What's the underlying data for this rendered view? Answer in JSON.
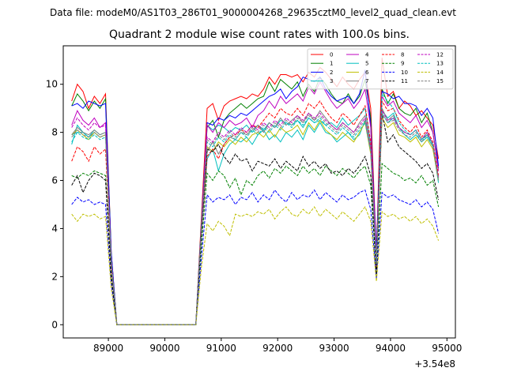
{
  "figure": {
    "suptitle": "Data file: modeM0/AS1T03_286T01_9000004268_29635cztM0_level2_quad_clean.evt"
  },
  "chart_data": {
    "type": "line",
    "title": "Quadrant 2 module wise count rates with 100.0s bins.",
    "xlabel": "",
    "ylabel": "",
    "x_offset_label": "+3.54e8",
    "x_offset": 354000000,
    "xlim": [
      88200,
      95150
    ],
    "ylim": [
      -0.55,
      11.6
    ],
    "x_ticks": [
      89000,
      90000,
      91000,
      92000,
      93000,
      94000,
      95000
    ],
    "x_tick_labels": [
      "89000",
      "90000",
      "91000",
      "92000",
      "93000",
      "94000",
      "95000"
    ],
    "y_ticks": [
      0,
      2,
      4,
      6,
      8,
      10
    ],
    "y_tick_labels": [
      "0",
      "2",
      "4",
      "6",
      "8",
      "10"
    ],
    "grid": false,
    "legend_placement": "top-right",
    "legend_columns": 4,
    "x": [
      88350,
      88450,
      88550,
      88650,
      88750,
      88850,
      88950,
      89050,
      89150,
      89250,
      89350,
      89450,
      89550,
      89650,
      89750,
      89850,
      89950,
      90050,
      90150,
      90250,
      90350,
      90450,
      90550,
      90650,
      90750,
      90850,
      90950,
      91050,
      91150,
      91250,
      91350,
      91450,
      91550,
      91650,
      91750,
      91850,
      91950,
      92050,
      92150,
      92250,
      92350,
      92450,
      92550,
      92650,
      92750,
      92850,
      92950,
      93050,
      93150,
      93250,
      93350,
      93450,
      93550,
      93650,
      93750,
      93850,
      93950,
      94050,
      94150,
      94250,
      94350,
      94450,
      94550,
      94650,
      94750,
      94850
    ],
    "series": [
      {
        "name": "0",
        "color": "#ff0000",
        "dash": "solid",
        "values": [
          9.3,
          10.0,
          9.7,
          9.0,
          9.5,
          9.2,
          9.6,
          3.0,
          0.0,
          0.0,
          0.0,
          0.0,
          0.0,
          0.0,
          0.0,
          0.0,
          0.0,
          0.0,
          0.0,
          0.0,
          0.0,
          0.0,
          0.0,
          4.5,
          9.0,
          9.2,
          8.5,
          9.1,
          9.3,
          9.4,
          9.5,
          9.4,
          9.6,
          9.5,
          9.8,
          10.3,
          10.0,
          10.4,
          10.4,
          10.3,
          10.4,
          10.1,
          10.5,
          10.3,
          10.7,
          10.5,
          10.2,
          9.9,
          10.3,
          10.0,
          9.8,
          10.2,
          10.5,
          9.0,
          3.0,
          11.1,
          9.5,
          9.7,
          9.0,
          9.3,
          9.1,
          8.7,
          8.9,
          8.6,
          8.3,
          6.9
        ]
      },
      {
        "name": "1",
        "color": "#008000",
        "dash": "solid",
        "values": [
          9.1,
          9.6,
          9.3,
          8.9,
          9.3,
          9.0,
          9.4,
          3.0,
          0.0,
          0.0,
          0.0,
          0.0,
          0.0,
          0.0,
          0.0,
          0.0,
          0.0,
          0.0,
          0.0,
          0.0,
          0.0,
          0.0,
          0.0,
          4.3,
          8.2,
          8.5,
          7.8,
          8.5,
          8.8,
          9.0,
          9.2,
          9.0,
          9.2,
          9.4,
          9.5,
          10.1,
          9.7,
          10.2,
          10.0,
          9.8,
          10.1,
          9.5,
          10.0,
          9.7,
          10.3,
          10.0,
          9.6,
          9.3,
          9.2,
          9.6,
          9.2,
          9.5,
          10.2,
          8.6,
          2.8,
          9.8,
          9.2,
          9.6,
          9.0,
          8.8,
          8.7,
          9.0,
          8.4,
          8.8,
          8.0,
          6.5
        ]
      },
      {
        "name": "2",
        "color": "#0000ff",
        "dash": "solid",
        "values": [
          9.1,
          9.2,
          9.0,
          9.3,
          9.2,
          9.1,
          9.2,
          3.0,
          0.0,
          0.0,
          0.0,
          0.0,
          0.0,
          0.0,
          0.0,
          0.0,
          0.0,
          0.0,
          0.0,
          0.0,
          0.0,
          0.0,
          0.0,
          4.2,
          8.4,
          8.3,
          8.6,
          8.5,
          8.7,
          8.6,
          8.8,
          8.7,
          8.9,
          9.1,
          9.3,
          9.5,
          9.6,
          9.8,
          9.4,
          9.7,
          9.9,
          10.3,
          10.2,
          10.1,
          10.3,
          9.8,
          9.5,
          9.3,
          9.4,
          9.5,
          9.2,
          9.6,
          10.6,
          8.3,
          3.0,
          9.7,
          9.6,
          9.4,
          9.5,
          9.2,
          9.2,
          9.1,
          8.7,
          9.0,
          8.6,
          6.6
        ]
      },
      {
        "name": "3",
        "color": "#00bfbf",
        "dash": "solid",
        "values": [
          7.9,
          8.0,
          8.0,
          7.8,
          8.1,
          7.9,
          8.0,
          2.6,
          0.0,
          0.0,
          0.0,
          0.0,
          0.0,
          0.0,
          0.0,
          0.0,
          0.0,
          0.0,
          0.0,
          0.0,
          0.0,
          0.0,
          0.0,
          4.0,
          8.3,
          8.1,
          8.3,
          8.2,
          8.0,
          8.2,
          8.1,
          8.3,
          8.0,
          8.3,
          8.1,
          8.4,
          8.2,
          8.5,
          8.4,
          8.3,
          8.5,
          8.2,
          8.6,
          8.4,
          8.5,
          8.3,
          8.4,
          8.2,
          8.6,
          8.3,
          8.5,
          8.7,
          9.0,
          7.5,
          2.6,
          8.8,
          8.4,
          8.6,
          8.2,
          8.0,
          7.9,
          8.1,
          7.7,
          7.9,
          7.5,
          6.0
        ]
      },
      {
        "name": "4",
        "color": "#bf00bf",
        "dash": "solid",
        "values": [
          8.3,
          8.9,
          8.5,
          8.3,
          8.6,
          8.2,
          8.4,
          2.7,
          0.0,
          0.0,
          0.0,
          0.0,
          0.0,
          0.0,
          0.0,
          0.0,
          0.0,
          0.0,
          0.0,
          0.0,
          0.0,
          0.0,
          0.0,
          4.1,
          8.3,
          8.0,
          8.4,
          8.2,
          8.5,
          8.3,
          8.4,
          8.6,
          8.2,
          8.7,
          8.9,
          9.3,
          9.0,
          9.5,
          9.2,
          9.4,
          9.6,
          9.3,
          9.9,
          9.6,
          10.1,
          9.7,
          9.3,
          9.0,
          9.2,
          9.4,
          9.0,
          9.3,
          9.8,
          8.2,
          2.7,
          9.5,
          9.1,
          9.3,
          8.8,
          8.6,
          8.4,
          8.7,
          8.2,
          8.5,
          8.0,
          6.4
        ]
      },
      {
        "name": "5",
        "color": "#00bfbf",
        "dash": "solid",
        "values": [
          7.5,
          8.3,
          8.0,
          7.8,
          8.0,
          7.8,
          7.9,
          2.6,
          0.0,
          0.0,
          0.0,
          0.0,
          0.0,
          0.0,
          0.0,
          0.0,
          0.0,
          0.0,
          0.0,
          0.0,
          0.0,
          0.0,
          0.0,
          3.9,
          6.9,
          7.3,
          6.4,
          7.1,
          7.5,
          7.7,
          7.6,
          7.8,
          7.5,
          7.9,
          8.1,
          7.7,
          7.9,
          7.6,
          8.0,
          7.8,
          8.1,
          7.7,
          8.3,
          8.0,
          8.4,
          8.0,
          7.9,
          7.6,
          7.8,
          8.0,
          7.7,
          7.9,
          8.5,
          7.2,
          2.5,
          8.9,
          8.6,
          8.8,
          8.2,
          7.9,
          7.7,
          7.9,
          7.6,
          7.8,
          7.4,
          5.9
        ]
      },
      {
        "name": "6",
        "color": "#bfbf00",
        "dash": "solid",
        "values": [
          7.9,
          8.1,
          7.9,
          7.7,
          8.0,
          7.8,
          7.9,
          2.6,
          0.0,
          0.0,
          0.0,
          0.0,
          0.0,
          0.0,
          0.0,
          0.0,
          0.0,
          0.0,
          0.0,
          0.0,
          0.0,
          0.0,
          0.0,
          4.0,
          7.4,
          7.2,
          7.6,
          7.4,
          7.7,
          7.5,
          7.8,
          7.6,
          7.9,
          8.0,
          7.8,
          8.1,
          7.8,
          8.2,
          8.0,
          8.1,
          8.3,
          7.9,
          8.4,
          8.1,
          8.5,
          8.1,
          7.9,
          7.7,
          8.0,
          7.8,
          7.6,
          8.0,
          8.4,
          7.1,
          2.5,
          8.6,
          8.2,
          8.4,
          7.9,
          7.8,
          7.6,
          7.8,
          7.4,
          7.7,
          7.3,
          6.0
        ]
      },
      {
        "name": "7",
        "color": "#808080",
        "dash": "solid",
        "values": [
          7.9,
          8.2,
          8.0,
          7.9,
          8.1,
          7.9,
          8.0,
          2.6,
          0.0,
          0.0,
          0.0,
          0.0,
          0.0,
          0.0,
          0.0,
          0.0,
          0.0,
          0.0,
          0.0,
          0.0,
          0.0,
          0.0,
          0.0,
          3.9,
          7.2,
          7.6,
          7.1,
          7.5,
          7.8,
          7.7,
          8.0,
          7.9,
          8.1,
          8.3,
          8.0,
          8.4,
          8.2,
          8.6,
          8.3,
          8.5,
          8.7,
          8.4,
          8.8,
          8.5,
          8.9,
          8.6,
          8.3,
          8.1,
          8.4,
          8.2,
          8.0,
          8.4,
          8.7,
          7.3,
          2.6,
          9.0,
          8.5,
          8.7,
          8.2,
          8.0,
          7.9,
          8.1,
          7.7,
          8.0,
          7.5,
          6.1
        ]
      },
      {
        "name": "8",
        "color": "#ff0000",
        "dash": "dashed",
        "values": [
          6.8,
          7.4,
          7.2,
          6.8,
          7.4,
          7.1,
          7.3,
          2.4,
          0.0,
          0.0,
          0.0,
          0.0,
          0.0,
          0.0,
          0.0,
          0.0,
          0.0,
          0.0,
          0.0,
          0.0,
          0.0,
          0.0,
          0.0,
          3.8,
          7.0,
          7.3,
          6.9,
          7.5,
          7.8,
          7.9,
          8.1,
          8.0,
          8.3,
          8.2,
          8.5,
          8.8,
          8.6,
          9.0,
          8.8,
          8.7,
          9.0,
          8.7,
          9.2,
          9.0,
          9.3,
          8.9,
          8.6,
          8.4,
          8.8,
          8.6,
          8.3,
          8.7,
          9.1,
          7.6,
          2.4,
          9.3,
          8.9,
          9.0,
          8.5,
          8.2,
          8.0,
          8.3,
          7.8,
          8.1,
          7.6,
          6.2
        ]
      },
      {
        "name": "9",
        "color": "#008000",
        "dash": "dashed",
        "values": [
          6.2,
          6.1,
          6.3,
          6.2,
          6.4,
          6.3,
          6.2,
          2.1,
          0.0,
          0.0,
          0.0,
          0.0,
          0.0,
          0.0,
          0.0,
          0.0,
          0.0,
          0.0,
          0.0,
          0.0,
          0.0,
          0.0,
          0.0,
          3.3,
          6.3,
          6.0,
          6.4,
          6.2,
          5.7,
          6.1,
          5.4,
          6.0,
          5.8,
          6.2,
          6.4,
          6.1,
          6.5,
          6.3,
          6.6,
          6.4,
          6.2,
          6.6,
          6.3,
          6.5,
          6.2,
          6.6,
          6.4,
          6.2,
          6.5,
          6.3,
          6.1,
          6.4,
          6.6,
          5.8,
          2.1,
          6.7,
          6.5,
          6.3,
          6.2,
          6.0,
          6.1,
          5.9,
          6.2,
          5.8,
          6.0,
          4.9
        ]
      },
      {
        "name": "10",
        "color": "#0000ff",
        "dash": "dashed",
        "values": [
          5.0,
          5.3,
          5.1,
          5.2,
          5.0,
          5.1,
          5.0,
          1.7,
          0.0,
          0.0,
          0.0,
          0.0,
          0.0,
          0.0,
          0.0,
          0.0,
          0.0,
          0.0,
          0.0,
          0.0,
          0.0,
          0.0,
          0.0,
          2.8,
          5.4,
          5.1,
          5.3,
          5.2,
          5.4,
          5.0,
          5.3,
          5.2,
          5.5,
          5.1,
          5.4,
          5.2,
          5.6,
          5.3,
          5.1,
          5.5,
          5.2,
          5.4,
          5.3,
          5.6,
          5.2,
          5.5,
          5.3,
          5.1,
          5.4,
          5.2,
          5.3,
          5.5,
          5.6,
          4.8,
          1.9,
          5.5,
          5.3,
          5.4,
          5.2,
          5.1,
          5.0,
          5.2,
          4.9,
          5.1,
          4.8,
          3.8
        ]
      },
      {
        "name": "11",
        "color": "#000000",
        "dash": "dashed",
        "values": [
          5.8,
          6.2,
          5.5,
          6.0,
          6.3,
          6.2,
          6.0,
          2.0,
          0.0,
          0.0,
          0.0,
          0.0,
          0.0,
          0.0,
          0.0,
          0.0,
          0.0,
          0.0,
          0.0,
          0.0,
          0.0,
          0.0,
          0.0,
          3.7,
          7.3,
          7.2,
          7.5,
          7.0,
          6.7,
          7.1,
          6.8,
          6.9,
          6.4,
          6.8,
          6.7,
          6.6,
          6.9,
          6.5,
          6.8,
          6.6,
          6.4,
          7.0,
          6.6,
          6.8,
          6.5,
          6.7,
          6.3,
          6.4,
          6.2,
          6.5,
          6.3,
          6.6,
          7.0,
          6.2,
          2.1,
          8.8,
          7.6,
          7.9,
          7.4,
          7.2,
          7.0,
          6.8,
          6.5,
          6.7,
          6.3,
          5.2
        ]
      },
      {
        "name": "12",
        "color": "#bf00bf",
        "dash": "dashed",
        "values": [
          8.2,
          8.6,
          8.3,
          8.1,
          8.4,
          8.2,
          8.3,
          2.7,
          0.0,
          0.0,
          0.0,
          0.0,
          0.0,
          0.0,
          0.0,
          0.0,
          0.0,
          0.0,
          0.0,
          0.0,
          0.0,
          0.0,
          0.0,
          4.0,
          7.8,
          7.6,
          8.0,
          7.8,
          8.1,
          7.9,
          8.2,
          8.0,
          8.3,
          8.1,
          8.4,
          8.2,
          8.5,
          8.3,
          8.6,
          8.4,
          8.7,
          8.5,
          8.8,
          8.6,
          8.8,
          8.5,
          8.3,
          8.1,
          8.4,
          8.2,
          8.0,
          8.3,
          8.6,
          7.3,
          2.6,
          8.9,
          8.5,
          8.6,
          8.2,
          8.0,
          7.9,
          8.1,
          7.7,
          8.0,
          7.5,
          6.1
        ]
      },
      {
        "name": "13",
        "color": "#00bfbf",
        "dash": "dashed",
        "values": [
          7.6,
          8.0,
          7.8,
          7.7,
          7.9,
          7.7,
          7.8,
          2.6,
          0.0,
          0.0,
          0.0,
          0.0,
          0.0,
          0.0,
          0.0,
          0.0,
          0.0,
          0.0,
          0.0,
          0.0,
          0.0,
          0.0,
          0.0,
          3.9,
          7.6,
          7.4,
          7.8,
          7.6,
          7.9,
          7.7,
          8.0,
          7.8,
          8.1,
          7.9,
          8.2,
          8.0,
          8.3,
          8.1,
          8.4,
          8.2,
          8.5,
          8.3,
          8.6,
          8.4,
          8.6,
          8.3,
          8.1,
          7.9,
          8.2,
          8.0,
          7.8,
          8.1,
          8.4,
          7.2,
          2.5,
          9.6,
          9.3,
          9.0,
          8.4,
          8.1,
          7.9,
          8.1,
          7.7,
          7.9,
          7.5,
          6.0
        ]
      },
      {
        "name": "14",
        "color": "#bfbf00",
        "dash": "dashed",
        "values": [
          4.6,
          4.3,
          4.6,
          4.5,
          4.6,
          4.4,
          4.5,
          1.5,
          0.0,
          0.0,
          0.0,
          0.0,
          0.0,
          0.0,
          0.0,
          0.0,
          0.0,
          0.0,
          0.0,
          0.0,
          0.0,
          0.0,
          0.0,
          2.4,
          4.2,
          3.9,
          4.3,
          4.1,
          3.7,
          4.6,
          4.5,
          4.6,
          4.5,
          4.7,
          4.6,
          4.8,
          4.4,
          4.7,
          4.9,
          4.6,
          4.5,
          4.8,
          4.6,
          4.9,
          4.5,
          4.8,
          4.6,
          4.4,
          4.7,
          4.5,
          4.3,
          4.6,
          4.9,
          4.3,
          1.8,
          4.7,
          4.5,
          4.6,
          4.4,
          4.5,
          4.3,
          4.5,
          4.2,
          4.4,
          4.1,
          3.5
        ]
      },
      {
        "name": "15",
        "color": "#808080",
        "dash": "dashed",
        "values": [
          7.8,
          8.1,
          7.9,
          7.8,
          8.0,
          7.8,
          7.9,
          2.6,
          0.0,
          0.0,
          0.0,
          0.0,
          0.0,
          0.0,
          0.0,
          0.0,
          0.0,
          0.0,
          0.0,
          0.0,
          0.0,
          0.0,
          0.0,
          3.9,
          7.7,
          7.5,
          7.9,
          7.7,
          8.0,
          7.8,
          8.1,
          7.9,
          8.2,
          8.0,
          8.3,
          8.1,
          8.4,
          8.2,
          8.5,
          8.3,
          8.6,
          8.4,
          8.7,
          8.5,
          8.7,
          8.4,
          8.2,
          8.0,
          8.3,
          8.1,
          7.9,
          8.2,
          8.5,
          7.2,
          2.5,
          8.8,
          8.4,
          8.5,
          8.1,
          7.9,
          7.8,
          8.0,
          7.6,
          7.9,
          7.4,
          6.0
        ]
      }
    ]
  }
}
